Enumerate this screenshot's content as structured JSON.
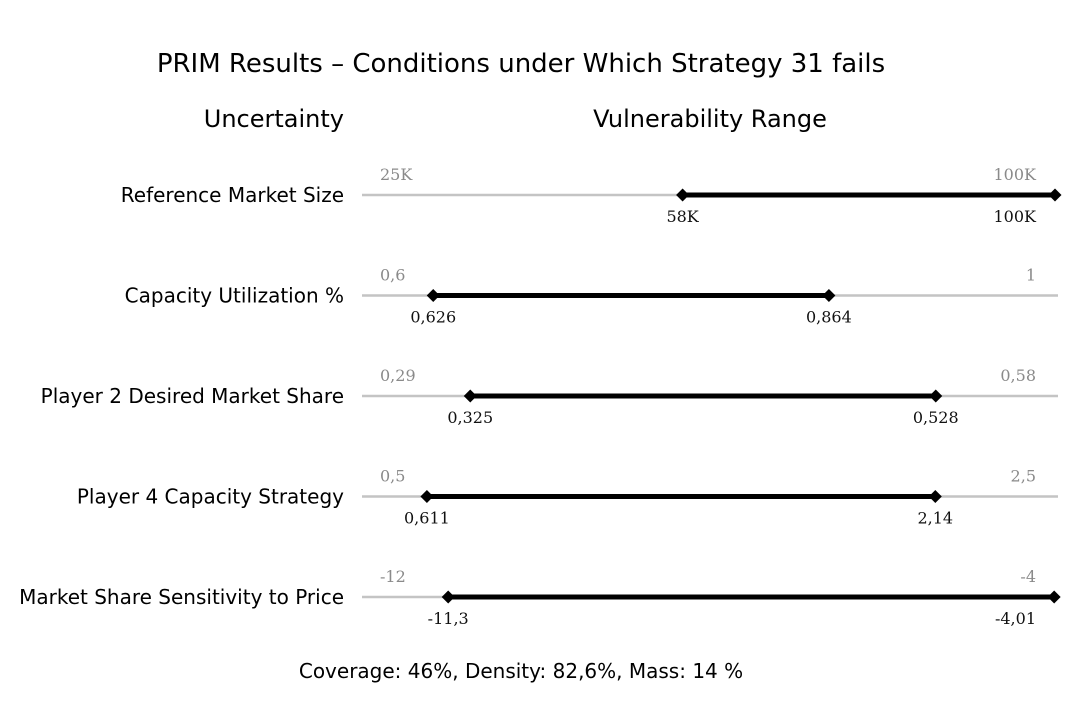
{
  "chart_data": {
    "type": "range",
    "title": "PRIM Results – Conditions under Which Strategy 31 fails",
    "headers": {
      "uncertainty": "Uncertainty",
      "range": "Vulnerability Range"
    },
    "rows": [
      {
        "label": "Reference Market Size",
        "min": 25000,
        "max": 100000,
        "min_label": "25K",
        "max_label": "100K",
        "low": 58000,
        "high": 100000,
        "low_label": "58K",
        "high_label": "100K"
      },
      {
        "label": "Capacity Utilization %",
        "min": 0.6,
        "max": 1,
        "min_label": "0,6",
        "max_label": "1",
        "low": 0.626,
        "high": 0.864,
        "low_label": "0,626",
        "high_label": "0,864"
      },
      {
        "label": "Player 2 Desired Market Share",
        "min": 0.29,
        "max": 0.58,
        "min_label": "0,29",
        "max_label": "0,58",
        "low": 0.325,
        "high": 0.528,
        "low_label": "0,325",
        "high_label": "0,528"
      },
      {
        "label": "Player 4 Capacity Strategy",
        "min": 0.5,
        "max": 2.5,
        "min_label": "0,5",
        "max_label": "2,5",
        "low": 0.611,
        "high": 2.14,
        "low_label": "0,611",
        "high_label": "2,14"
      },
      {
        "label": "Market Share Sensitivity to Price",
        "min": -12,
        "max": -4,
        "min_label": "-12",
        "max_label": "-4",
        "low": -11.3,
        "high": -4.01,
        "low_label": "-11,3",
        "high_label": "-4,01"
      }
    ],
    "footer": "Coverage: 46%, Density: 82,6%, Mass: 14 %",
    "colors": {
      "track": "#c4c4c4",
      "range": "#000000",
      "bound_text": "#8a8a8a"
    }
  }
}
